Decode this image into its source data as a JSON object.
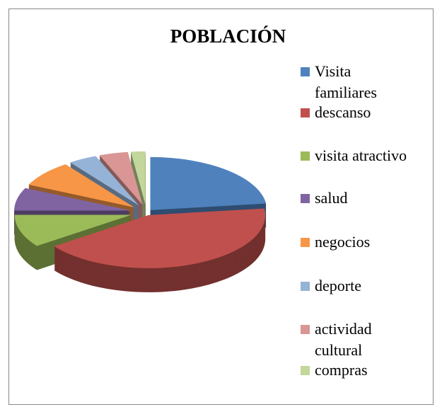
{
  "chart_data": {
    "type": "pie",
    "title": "POBLACIÓN",
    "categories": [
      "Visita familiares",
      "descanso",
      "visita atractivo",
      "salud",
      "negocios",
      "deporte",
      "actividad cultural",
      "compras"
    ],
    "values": [
      23,
      42,
      10,
      7,
      8,
      4,
      4,
      2
    ],
    "colors": [
      "#4f81bd",
      "#c0504d",
      "#9bbb59",
      "#8064a2",
      "#f79646",
      "#95b3d7",
      "#d99694",
      "#c3d69b"
    ],
    "legend": "right"
  }
}
